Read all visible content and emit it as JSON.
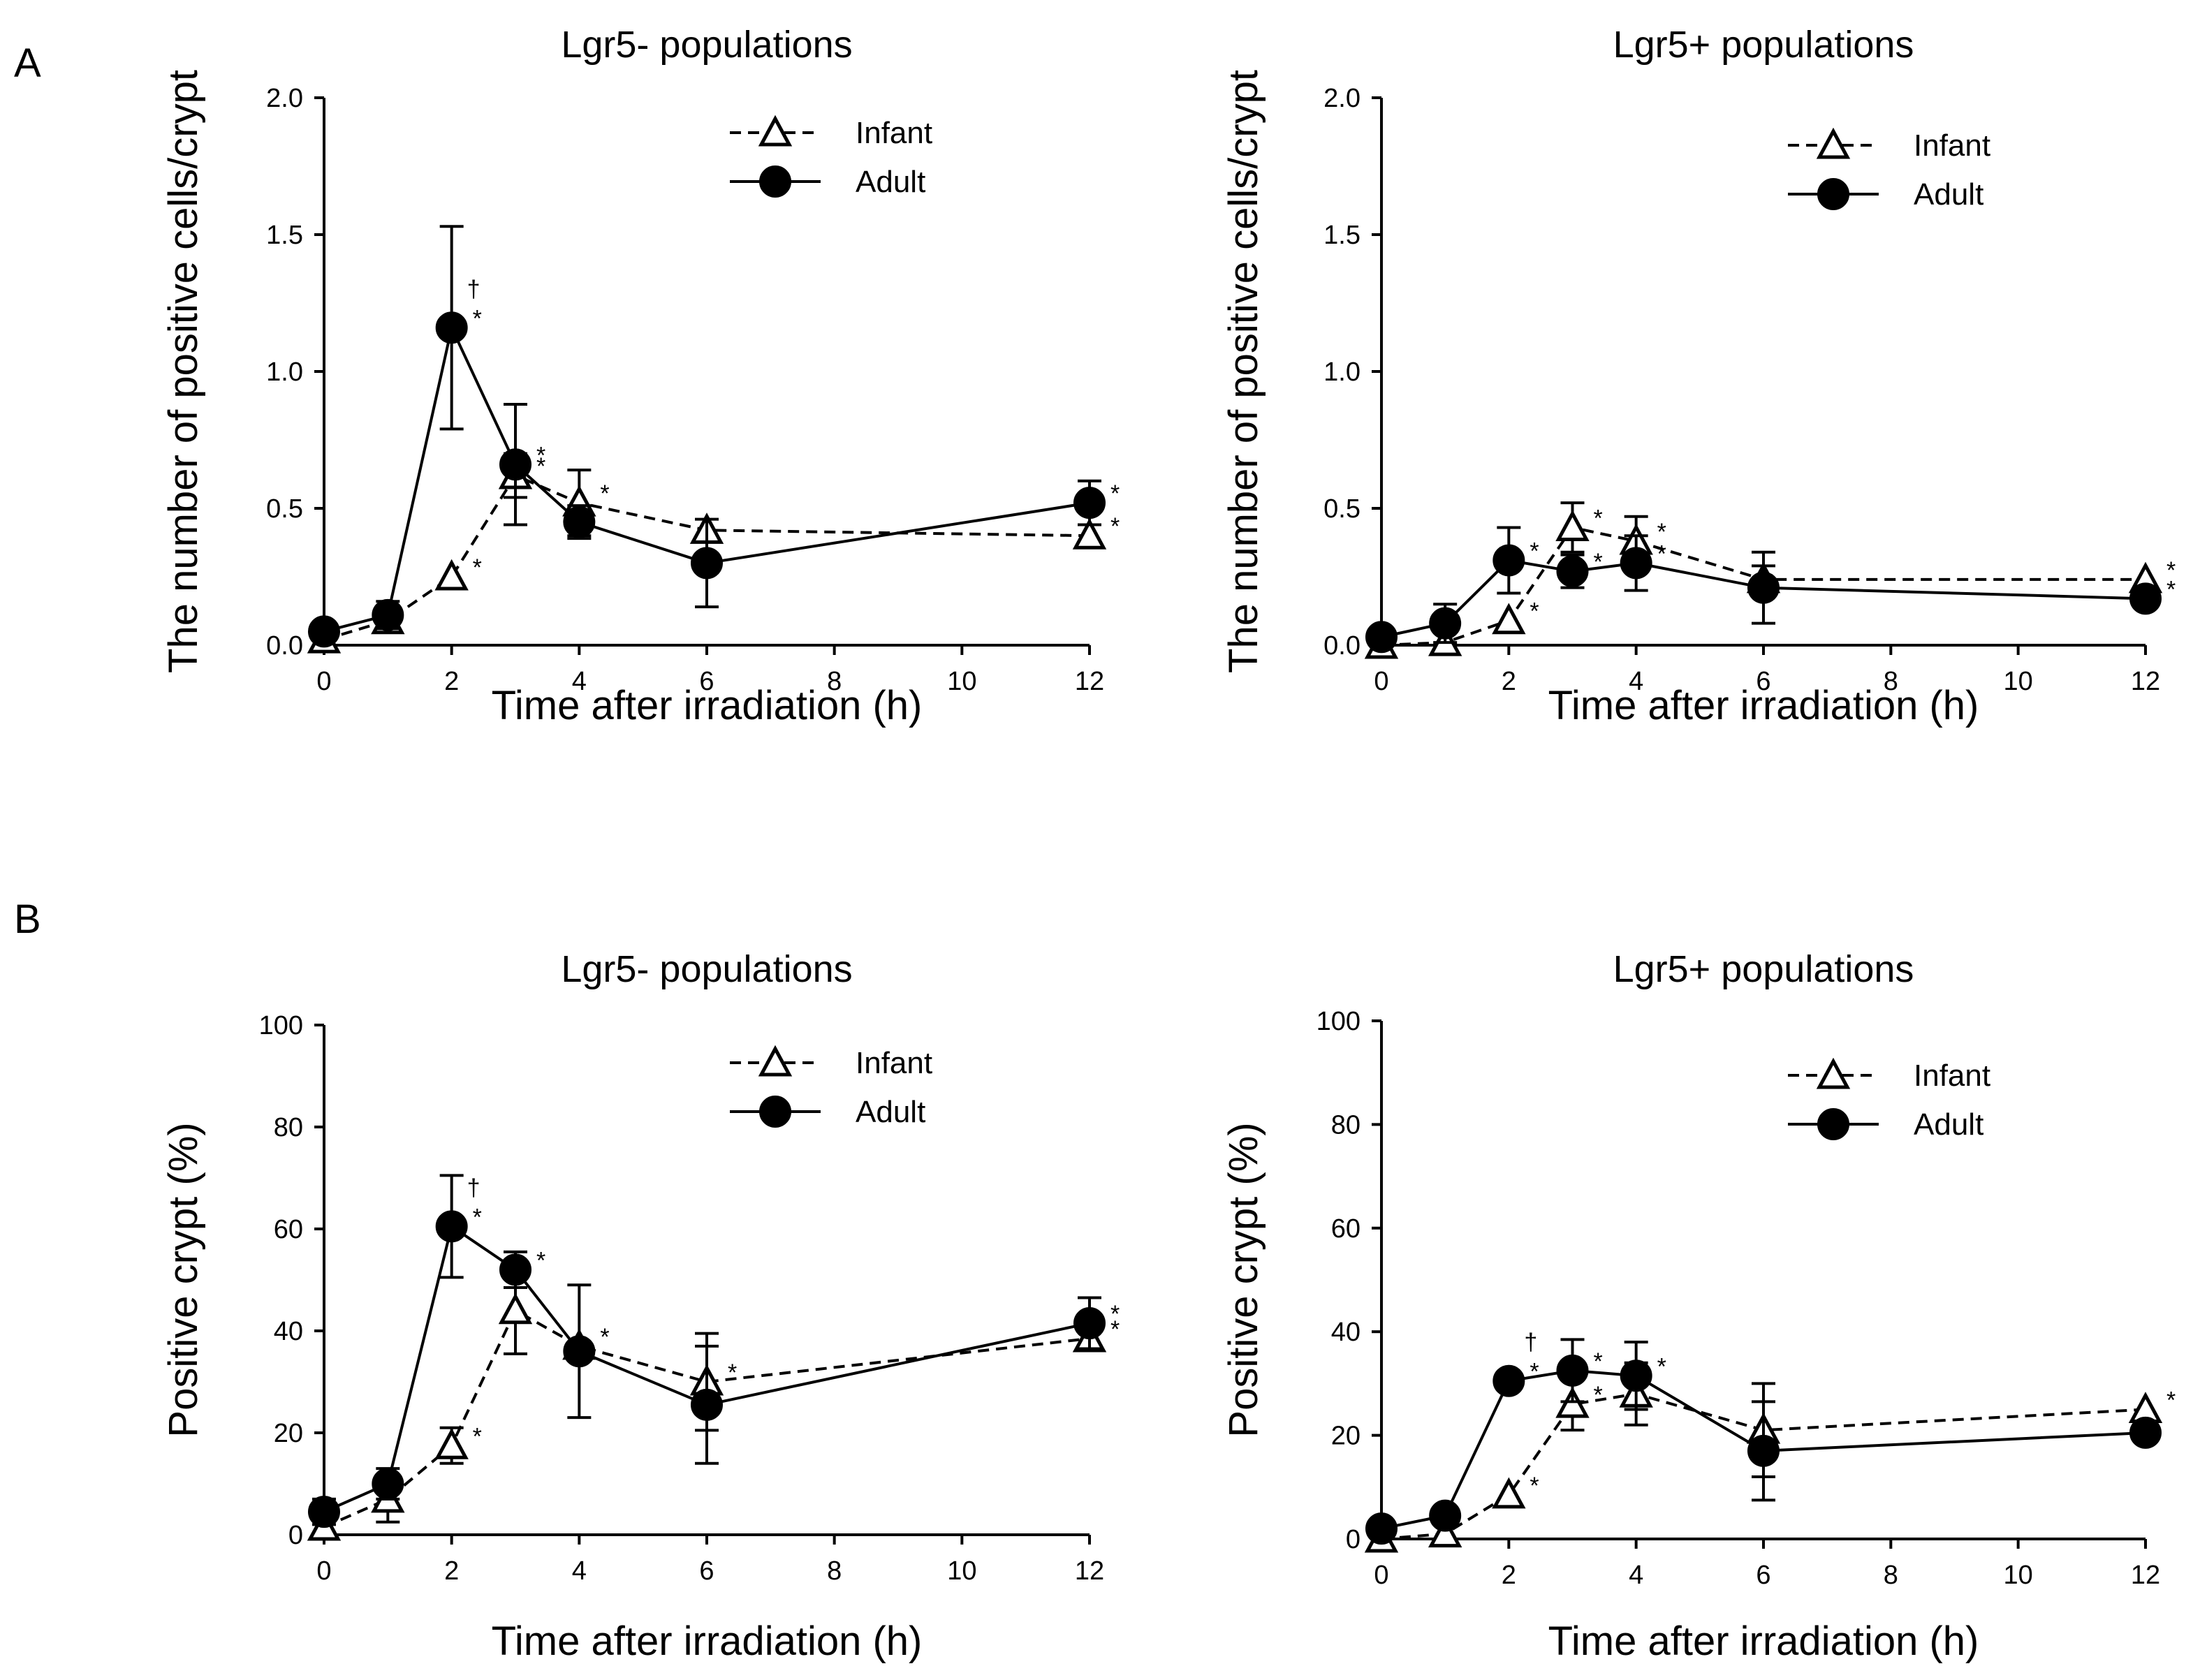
{
  "figure": {
    "panel_a_label": "A",
    "panel_b_label": "B"
  },
  "chart_data": [
    {
      "type": "line",
      "panel": "A",
      "title": "Lgr5- populations",
      "xlabel": "Time after irradiation (h)",
      "ylabel": "The number  of positive cells/crypt",
      "xlim": [
        0,
        12
      ],
      "ylim": [
        0,
        2
      ],
      "xticks": [
        0,
        2,
        4,
        6,
        8,
        10,
        12
      ],
      "xtick_labels": [
        "0",
        "2",
        "4",
        "6",
        "8",
        "10",
        "12"
      ],
      "yticks": [
        0,
        0.5,
        1,
        1.5,
        2
      ],
      "ytick_labels": [
        "0.0",
        "0.5",
        "1.0",
        "1.5",
        "2.0"
      ],
      "legend": "top-right",
      "series": [
        {
          "name": "Infant",
          "style": "dashed",
          "marker": "triangle-open",
          "x": [
            0,
            1,
            2,
            3,
            4,
            6,
            12
          ],
          "y": [
            0.02,
            0.09,
            0.25,
            0.62,
            0.52,
            0.42,
            0.4
          ],
          "err": [
            0,
            0,
            0,
            0.08,
            0.12,
            0,
            0
          ],
          "annotations": [
            {
              "x": 2,
              "y": 0.25,
              "text": "*"
            },
            {
              "x": 3,
              "y": 0.62,
              "text": "*"
            },
            {
              "x": 4,
              "y": 0.52,
              "text": "*"
            },
            {
              "x": 12,
              "y": 0.4,
              "text": "*"
            }
          ]
        },
        {
          "name": "Adult",
          "style": "solid",
          "marker": "circle-filled",
          "x": [
            0,
            1,
            2,
            3,
            4,
            6,
            12
          ],
          "y": [
            0.05,
            0.11,
            1.16,
            0.66,
            0.45,
            0.3,
            0.52
          ],
          "err": [
            0.02,
            0.05,
            0.37,
            0.22,
            0.06,
            0.16,
            0.08
          ],
          "annotations": [
            {
              "x": 2,
              "y": 1.16,
              "text": "*",
              "dagger": "†"
            },
            {
              "x": 3,
              "y": 0.66,
              "text": "*"
            },
            {
              "x": 12,
              "y": 0.52,
              "text": "*"
            }
          ]
        }
      ]
    },
    {
      "type": "line",
      "panel": "A",
      "title": "Lgr5+ populations",
      "xlabel": "Time after irradiation (h)",
      "ylabel": "The number  of positive cells/crypt",
      "xlim": [
        0,
        12
      ],
      "ylim": [
        0,
        2
      ],
      "xticks": [
        0,
        2,
        4,
        6,
        8,
        10,
        12
      ],
      "xtick_labels": [
        "0",
        "2",
        "4",
        "6",
        "8",
        "10",
        "12"
      ],
      "yticks": [
        0,
        0.5,
        1,
        1.5,
        2
      ],
      "ytick_labels": [
        "0.0",
        "0.5",
        "1.0",
        "1.5",
        "2.0"
      ],
      "legend": "top-right",
      "series": [
        {
          "name": "Infant",
          "style": "dashed",
          "marker": "triangle-open",
          "x": [
            0,
            1,
            2,
            3,
            4,
            6,
            12
          ],
          "y": [
            0.0,
            0.01,
            0.09,
            0.43,
            0.38,
            0.24,
            0.24
          ],
          "err": [
            0,
            0,
            0,
            0.09,
            0.09,
            0.05,
            0
          ],
          "annotations": [
            {
              "x": 2,
              "y": 0.09,
              "text": "*"
            },
            {
              "x": 3,
              "y": 0.43,
              "text": "*"
            },
            {
              "x": 4,
              "y": 0.38,
              "text": "*"
            },
            {
              "x": 12,
              "y": 0.24,
              "text": "*"
            }
          ]
        },
        {
          "name": "Adult",
          "style": "solid",
          "marker": "circle-filled",
          "x": [
            0,
            1,
            2,
            3,
            4,
            6,
            12
          ],
          "y": [
            0.03,
            0.08,
            0.31,
            0.27,
            0.3,
            0.21,
            0.17
          ],
          "err": [
            0,
            0.07,
            0.12,
            0.06,
            0.1,
            0.13,
            0
          ],
          "annotations": [
            {
              "x": 2,
              "y": 0.31,
              "text": "*"
            },
            {
              "x": 3,
              "y": 0.27,
              "text": "*"
            },
            {
              "x": 4,
              "y": 0.3,
              "text": "*"
            },
            {
              "x": 12,
              "y": 0.17,
              "text": "*"
            }
          ]
        }
      ]
    },
    {
      "type": "line",
      "panel": "B",
      "title": "Lgr5- populations",
      "xlabel": "Time after irradiation (h)",
      "ylabel": "Positive crypt (%)",
      "xlim": [
        0,
        12
      ],
      "ylim": [
        0,
        100
      ],
      "xticks": [
        0,
        2,
        4,
        6,
        8,
        10,
        12
      ],
      "xtick_labels": [
        "0",
        "2",
        "4",
        "6",
        "8",
        "10",
        "12"
      ],
      "yticks": [
        0,
        20,
        40,
        60,
        80,
        100
      ],
      "ytick_labels": [
        "0",
        "20",
        "40",
        "60",
        "80",
        "100"
      ],
      "legend": "top-right",
      "series": [
        {
          "name": "Infant",
          "style": "dashed",
          "marker": "triangle-open",
          "x": [
            0,
            1,
            2,
            3,
            4,
            6,
            12
          ],
          "y": [
            1.5,
            7,
            17.5,
            44,
            37,
            30,
            38.5
          ],
          "err": [
            0,
            4.5,
            3.5,
            8.5,
            0,
            9.5,
            0
          ],
          "annotations": [
            {
              "x": 2,
              "y": 17.5,
              "text": "*"
            },
            {
              "x": 4,
              "y": 37,
              "text": "*"
            },
            {
              "x": 6,
              "y": 30,
              "text": "*"
            },
            {
              "x": 12,
              "y": 38.5,
              "text": "*"
            }
          ]
        },
        {
          "name": "Adult",
          "style": "solid",
          "marker": "circle-filled",
          "x": [
            0,
            1,
            2,
            3,
            4,
            6,
            12
          ],
          "y": [
            4.5,
            10,
            60.5,
            52,
            36,
            25.5,
            41.5
          ],
          "err": [
            2.5,
            3,
            10,
            3.5,
            13,
            11.5,
            5
          ],
          "annotations": [
            {
              "x": 2,
              "y": 60.5,
              "text": "*",
              "dagger": "†"
            },
            {
              "x": 3,
              "y": 52,
              "text": "*"
            },
            {
              "x": 12,
              "y": 41.5,
              "text": "*"
            }
          ]
        }
      ]
    },
    {
      "type": "line",
      "panel": "B",
      "title": "Lgr5+ populations",
      "xlabel": "Time after irradiation (h)",
      "ylabel": "Positive crypt (%)",
      "xlim": [
        0,
        12
      ],
      "ylim": [
        0,
        100
      ],
      "xticks": [
        0,
        2,
        4,
        6,
        8,
        10,
        12
      ],
      "xtick_labels": [
        "0",
        "2",
        "4",
        "6",
        "8",
        "10",
        "12"
      ],
      "yticks": [
        0,
        20,
        40,
        60,
        80,
        100
      ],
      "ytick_labels": [
        "0",
        "20",
        "40",
        "60",
        "80",
        "100"
      ],
      "legend": "top-right",
      "series": [
        {
          "name": "Infant",
          "style": "dashed",
          "marker": "triangle-open",
          "x": [
            0,
            1,
            2,
            3,
            4,
            6,
            12
          ],
          "y": [
            0,
            1,
            8.5,
            26,
            28,
            21,
            25
          ],
          "err": [
            0,
            0,
            0,
            5,
            6,
            9,
            0
          ],
          "annotations": [
            {
              "x": 2,
              "y": 8.5,
              "text": "*"
            },
            {
              "x": 3,
              "y": 26,
              "text": "*"
            },
            {
              "x": 12,
              "y": 25,
              "text": "*"
            }
          ]
        },
        {
          "name": "Adult",
          "style": "solid",
          "marker": "circle-filled",
          "x": [
            0,
            1,
            2,
            3,
            4,
            6,
            12
          ],
          "y": [
            2,
            4.5,
            30.5,
            32.5,
            31.5,
            17,
            20.5
          ],
          "err": [
            0,
            0,
            0,
            6,
            6.5,
            9.5,
            0
          ],
          "annotations": [
            {
              "x": 2,
              "y": 30.5,
              "text": "*",
              "dagger": "†"
            },
            {
              "x": 3,
              "y": 32.5,
              "text": "*"
            },
            {
              "x": 4,
              "y": 31.5,
              "text": "*"
            }
          ]
        }
      ]
    }
  ]
}
